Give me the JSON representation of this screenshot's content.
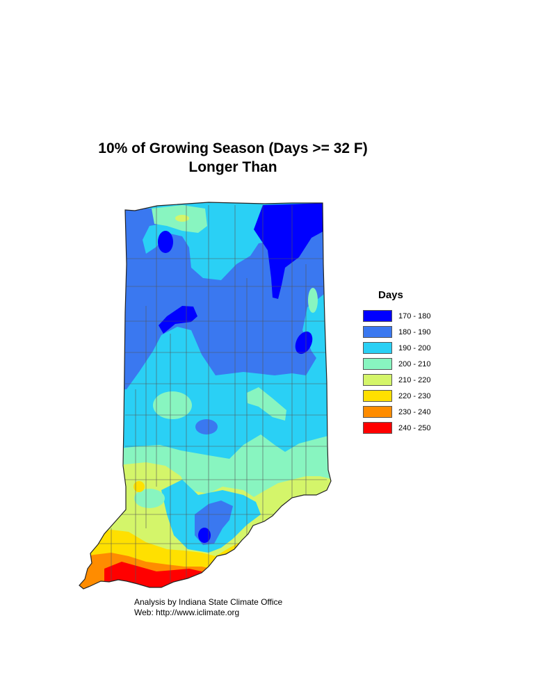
{
  "title_line1": "10% of Growing Season (Days >= 32 F)",
  "title_line2": "Longer Than",
  "legend": {
    "title": "Days",
    "items": [
      {
        "label": "170 - 180",
        "color": "#0000ff"
      },
      {
        "label": "180 - 190",
        "color": "#3a78f0"
      },
      {
        "label": "190 - 200",
        "color": "#2ad0f5"
      },
      {
        "label": "200 - 210",
        "color": "#88f5c0"
      },
      {
        "label": "210 - 220",
        "color": "#d4f56a"
      },
      {
        "label": "220 - 230",
        "color": "#ffe000"
      },
      {
        "label": "230 - 240",
        "color": "#ff8c00"
      },
      {
        "label": "240 - 250",
        "color": "#ff0000"
      }
    ]
  },
  "credit_line1": "Analysis by Indiana State Climate Office",
  "credit_line2": "Web:   http://www.iclimate.org"
}
